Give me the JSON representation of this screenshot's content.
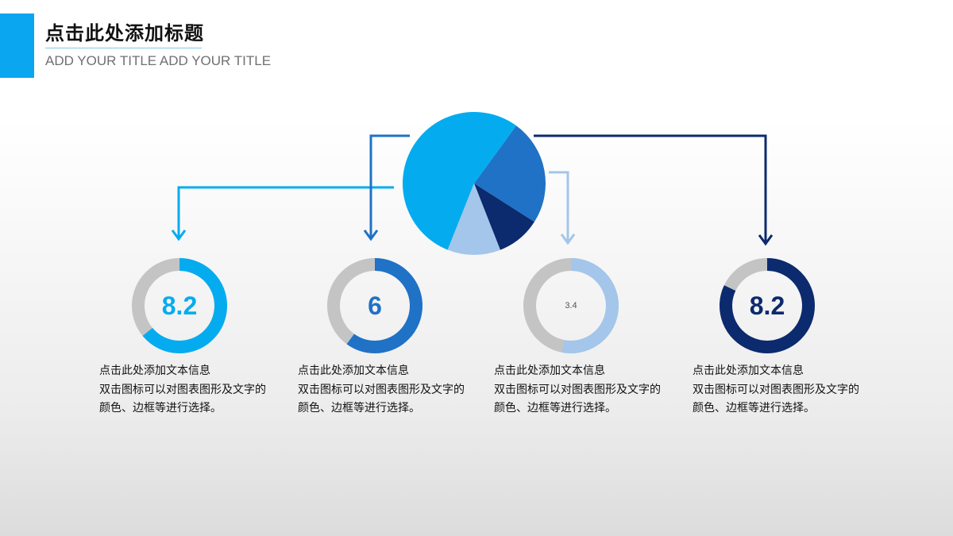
{
  "header": {
    "title": "点击此处添加标题",
    "subtitle": "ADD YOUR TITLE ADD YOUR TITLE",
    "accent_color": "#0aa6ef"
  },
  "chart_data": [
    {
      "type": "pie",
      "title": "",
      "slices": [
        {
          "value": 54,
          "color": "#04acef"
        },
        {
          "value": 24,
          "color": "#1f72c6"
        },
        {
          "value": 10,
          "color": "#0c2a6e"
        },
        {
          "value": 12,
          "color": "#a3c6ea"
        }
      ]
    },
    {
      "type": "donut",
      "gauges": [
        {
          "label": "8.2",
          "fraction": 0.64,
          "color": "#04acef"
        },
        {
          "label": "6",
          "fraction": 0.6,
          "color": "#1f72c6"
        },
        {
          "label": "3.4",
          "fraction": 0.53,
          "color": "#a3c6ea"
        },
        {
          "label": "8.2",
          "fraction": 0.82,
          "color": "#0c2a6e"
        }
      ],
      "track_color": "#c4c4c4"
    }
  ],
  "descriptions": [
    {
      "line1": "点击此处添加文本信息",
      "line2": "双击图标可以对图表图形及文字的",
      "line3": "颜色、边框等进行选择。"
    },
    {
      "line1": "点击此处添加文本信息",
      "line2": "双击图标可以对图表图形及文字的",
      "line3": "颜色、边框等进行选择。"
    },
    {
      "line1": "点击此处添加文本信息",
      "line2": "双击图标可以对图表图形及文字的",
      "line3": "颜色、边框等进行选择。"
    },
    {
      "line1": "点击此处添加文本信息",
      "line2": "双击图标可以对图表图形及文字的",
      "line3": "颜色、边框等进行选择。"
    }
  ]
}
